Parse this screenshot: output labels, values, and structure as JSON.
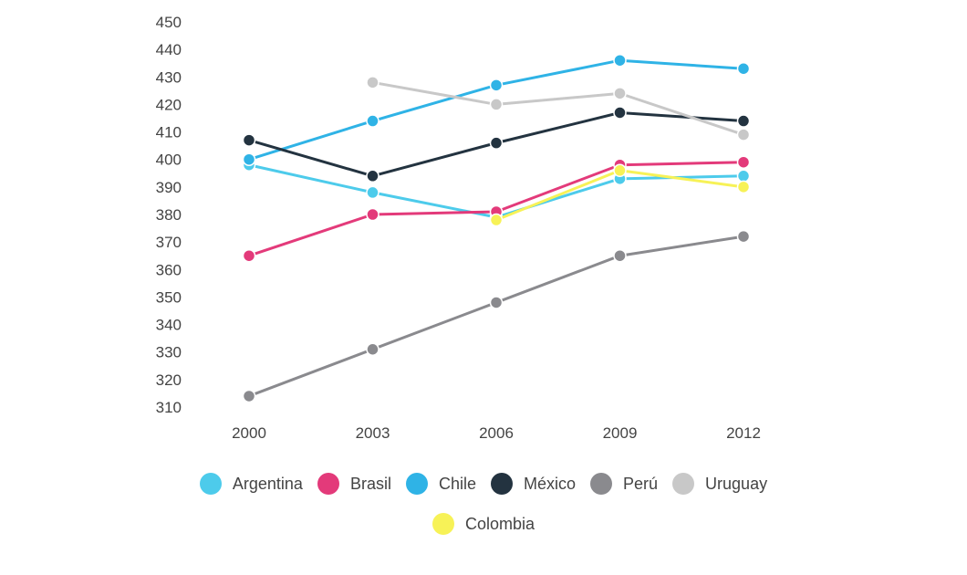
{
  "chart_data": {
    "type": "line",
    "title": "",
    "xlabel": "",
    "ylabel": "",
    "categories": [
      "2000",
      "2003",
      "2006",
      "2009",
      "2012"
    ],
    "ylim": [
      310,
      450
    ],
    "yticks": [
      310,
      320,
      330,
      340,
      350,
      360,
      370,
      380,
      390,
      400,
      410,
      420,
      430,
      440,
      450
    ],
    "legend_position": "bottom",
    "series": [
      {
        "name": "Argentina",
        "color": "#4dcbeb",
        "values": [
          398,
          388,
          379,
          393,
          394
        ]
      },
      {
        "name": "Brasil",
        "color": "#e33a7a",
        "values": [
          365,
          380,
          381,
          398,
          399
        ]
      },
      {
        "name": "Chile",
        "color": "#2fb3e6",
        "values": [
          400,
          414,
          427,
          436,
          433
        ]
      },
      {
        "name": "México",
        "color": "#233340",
        "values": [
          407,
          394,
          406,
          417,
          414
        ]
      },
      {
        "name": "Perú",
        "color": "#8a8a8e",
        "values": [
          314,
          331,
          348,
          365,
          372
        ]
      },
      {
        "name": "Uruguay",
        "color": "#c8c8c8",
        "values": [
          null,
          428,
          420,
          424,
          409
        ]
      },
      {
        "name": "Colombia",
        "color": "#f7f257",
        "values": [
          null,
          null,
          378,
          396,
          390
        ]
      }
    ]
  },
  "legend": {
    "items": [
      {
        "label": "Argentina",
        "color": "#4dcbeb"
      },
      {
        "label": "Brasil",
        "color": "#e33a7a"
      },
      {
        "label": "Chile",
        "color": "#2fb3e6"
      },
      {
        "label": "México",
        "color": "#233340"
      },
      {
        "label": "Perú",
        "color": "#8a8a8e"
      },
      {
        "label": "Uruguay",
        "color": "#c8c8c8"
      },
      {
        "label": "Colombia",
        "color": "#f7f257"
      }
    ]
  }
}
